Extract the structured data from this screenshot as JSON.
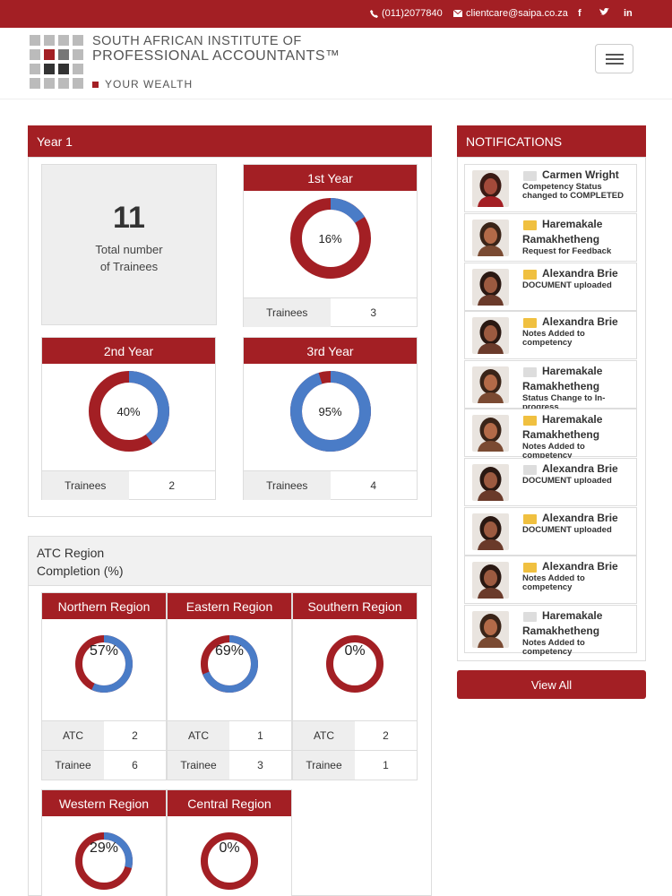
{
  "topbar": {
    "phone": "(011)2077840",
    "email": "clientcare@saipa.co.za",
    "social": [
      "f",
      "t",
      "in"
    ]
  },
  "logo": {
    "line1": "SOUTH AFRICAN INSTITUTE OF",
    "line2": "PROFESSIONAL ACCOUNTANTS™",
    "tagline": "YOUR WEALTH"
  },
  "year_panel": {
    "title": "Year 1",
    "total": "11",
    "total_label_1": "Total number",
    "total_label_2": "of Trainees",
    "cards": [
      {
        "title": "1st Year",
        "pct": "16%",
        "value": 0.16,
        "row_label": "Trainees",
        "row_value": "3"
      },
      {
        "title": "2nd Year",
        "pct": "40%",
        "value": 0.4,
        "row_label": "Trainees",
        "row_value": "2"
      },
      {
        "title": "3rd Year",
        "pct": "95%",
        "value": 0.95,
        "row_label": "Trainees",
        "row_value": "4"
      }
    ]
  },
  "atc": {
    "title_1": "ATC Region",
    "title_2": "Completion (%)",
    "regions": [
      {
        "title": "Northern Region",
        "pct": "57%",
        "value": 0.57,
        "atc_label": "ATC",
        "atc": "2",
        "trainee_label": "Trainee",
        "trainee": "6"
      },
      {
        "title": "Eastern Region",
        "pct": "69%",
        "value": 0.69,
        "atc_label": "ATC",
        "atc": "1",
        "trainee_label": "Trainee",
        "trainee": "3"
      },
      {
        "title": "Southern Region",
        "pct": "0%",
        "value": 0.0,
        "atc_label": "ATC",
        "atc": "2",
        "trainee_label": "Trainee",
        "trainee": "1"
      },
      {
        "title": "Western Region",
        "pct": "29%",
        "value": 0.29
      },
      {
        "title": "Central Region",
        "pct": "0%",
        "value": 0.0
      }
    ]
  },
  "notifications": {
    "title": "NOTIFICATIONS",
    "view_all": "View All",
    "items": [
      {
        "name": "Carmen Wright",
        "message": "Competency Status changed to COMPLETED",
        "unread": false
      },
      {
        "name": "Haremakale Ramakhetheng",
        "message": "Request for Feedback",
        "unread": true
      },
      {
        "name": "Alexandra Brie",
        "message": "DOCUMENT uploaded",
        "unread": true
      },
      {
        "name": "Alexandra Brie",
        "message": "Notes Added to competency",
        "unread": true
      },
      {
        "name": "Haremakale Ramakhetheng",
        "message": "Status Change to In-progress",
        "unread": false
      },
      {
        "name": "Haremakale Ramakhetheng",
        "message": "Notes Added to competency",
        "unread": true
      },
      {
        "name": "Alexandra Brie",
        "message": "DOCUMENT uploaded",
        "unread": false
      },
      {
        "name": "Alexandra Brie",
        "message": "DOCUMENT uploaded",
        "unread": true
      },
      {
        "name": "Alexandra Brie",
        "message": "Notes Added to competency",
        "unread": true
      },
      {
        "name": "Haremakale Ramakhetheng",
        "message": "Notes Added to competency",
        "unread": false
      }
    ]
  },
  "colors": {
    "brand_red": "#a31f24",
    "ring_blue": "#4a7cc7",
    "unread_envelope": "#f0c040",
    "read_envelope": "#dddddd"
  },
  "icons": [
    "phone-icon",
    "envelope-icon",
    "facebook-icon",
    "twitter-icon",
    "linkedin-icon",
    "hamburger-menu-icon"
  ]
}
